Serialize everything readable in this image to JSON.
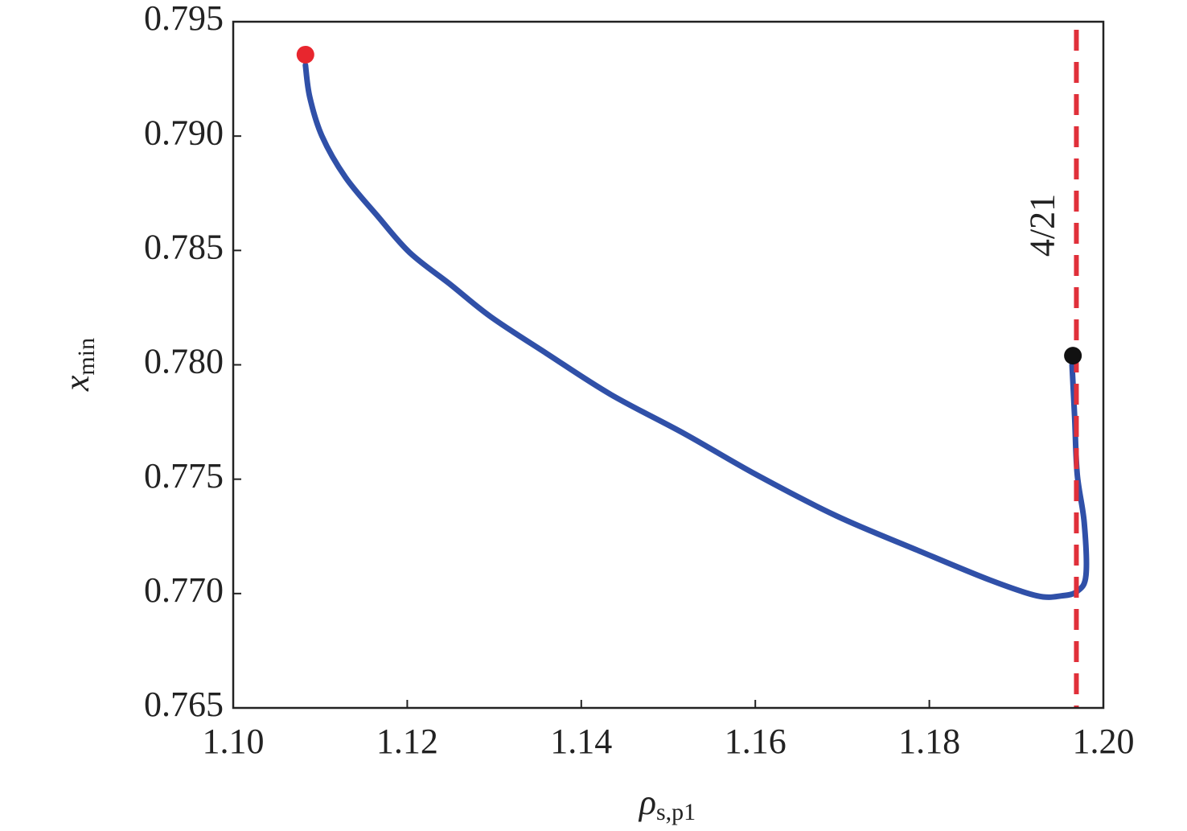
{
  "chart_data": {
    "type": "line",
    "xlabel": {
      "main": "ρ",
      "sub": "s,p1"
    },
    "ylabel": {
      "main": "x",
      "sub": "min"
    },
    "annotation": "4/21",
    "vline": {
      "x": 1.1969,
      "color": "#e0303a"
    },
    "xlim": [
      1.1,
      1.2
    ],
    "ylim": [
      0.765,
      0.795
    ],
    "xticks": [
      {
        "value": 1.1,
        "label": "1.10"
      },
      {
        "value": 1.12,
        "label": "1.12"
      },
      {
        "value": 1.14,
        "label": "1.14"
      },
      {
        "value": 1.16,
        "label": "1.16"
      },
      {
        "value": 1.18,
        "label": "1.18"
      },
      {
        "value": 1.2,
        "label": "1.20"
      }
    ],
    "yticks": [
      0.765,
      {
        "value": 0.77,
        "label": "0.770"
      },
      0.775,
      {
        "value": 0.78,
        "label": "0.780"
      },
      0.785,
      {
        "value": 0.79,
        "label": "0.790"
      },
      0.795
    ],
    "series": [
      {
        "color": "#3050a8",
        "x": [
          1.1083,
          1.1088,
          1.1102,
          1.1129,
          1.1166,
          1.1203,
          1.125,
          1.1296,
          1.136,
          1.1434,
          1.1518,
          1.1601,
          1.1693,
          1.1786,
          1.1869,
          1.1924,
          1.1952,
          1.197,
          1.198,
          1.1978,
          1.197,
          1.1967,
          1.1964
        ],
        "values": [
          0.7931,
          0.7917,
          0.79,
          0.7882,
          0.7865,
          0.7849,
          0.7835,
          0.7821,
          0.7805,
          0.7787,
          0.777,
          0.7752,
          0.7734,
          0.7719,
          0.7706,
          0.7699,
          0.7699,
          0.7701,
          0.7708,
          0.7731,
          0.7752,
          0.7777,
          0.78
        ]
      }
    ],
    "points": [
      {
        "x": 1.1083,
        "value": 0.79356,
        "color": "#e8262e"
      },
      {
        "x": 1.1965,
        "value": 0.7804,
        "color": "#111111"
      }
    ]
  }
}
